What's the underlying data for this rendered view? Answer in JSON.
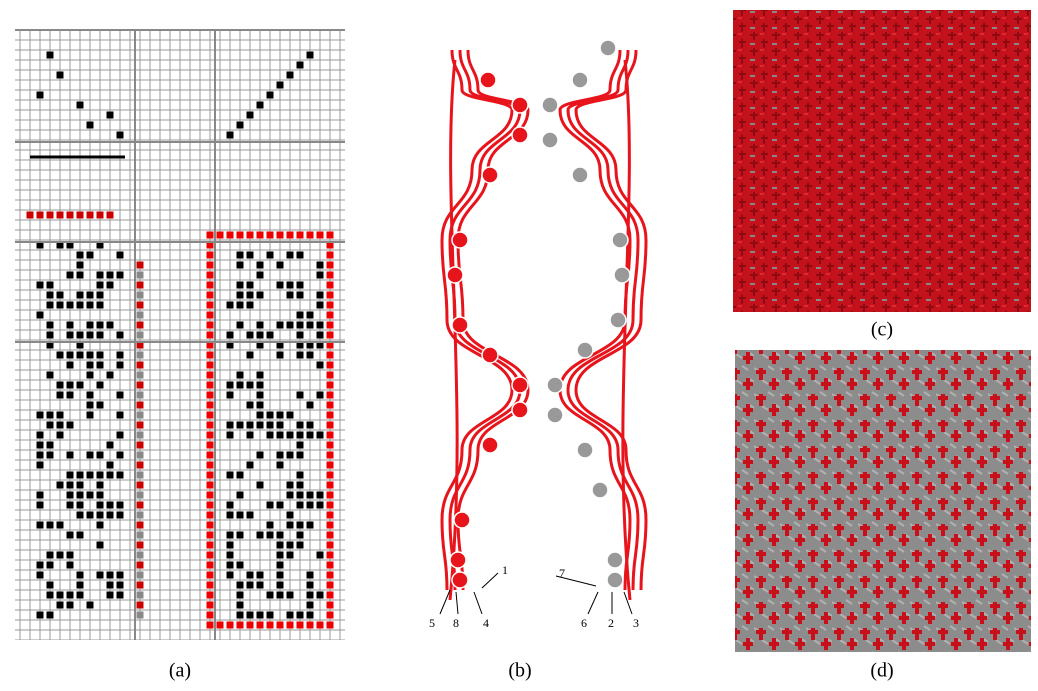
{
  "panels": [
    {
      "label": "(a)"
    },
    {
      "label": "(b)"
    },
    {
      "label": "(c)"
    },
    {
      "label": "(d)"
    }
  ],
  "thread_labels": [
    "1",
    "7",
    "5",
    "8",
    "4",
    "6",
    "2",
    "3"
  ]
}
